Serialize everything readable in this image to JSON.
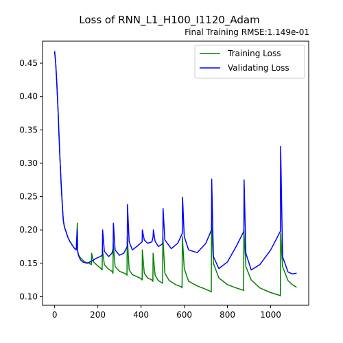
{
  "chart_data": {
    "type": "line",
    "title": "Loss of RNN_L1_H100_I1120_Adam",
    "subtitle": "Final Training RMSE:1.149e-01",
    "xlabel": "",
    "ylabel": "",
    "xlim": [
      -56,
      1176
    ],
    "ylim": [
      0.087,
      0.483
    ],
    "xticks": [
      0,
      200,
      400,
      600,
      800,
      1000
    ],
    "yticks": [
      0.1,
      0.15,
      0.2,
      0.25,
      0.3,
      0.35,
      0.4,
      0.45
    ],
    "xtick_labels": [
      "0",
      "200",
      "400",
      "600",
      "800",
      "1000"
    ],
    "ytick_labels": [
      "0.10",
      "0.15",
      "0.20",
      "0.25",
      "0.30",
      "0.35",
      "0.40",
      "0.45"
    ],
    "grid": false,
    "legend_position": "top-right",
    "series": [
      {
        "name": "Training Loss",
        "color": "#008000",
        "x": [
          0,
          5,
          10,
          15,
          20,
          25,
          30,
          35,
          40,
          45,
          50,
          55,
          60,
          70,
          80,
          90,
          100,
          105,
          106,
          110,
          120,
          130,
          140,
          160,
          170,
          171,
          180,
          200,
          215,
          220,
          221,
          230,
          250,
          265,
          270,
          271,
          280,
          300,
          330,
          335,
          336,
          345,
          360,
          380,
          400,
          405,
          406,
          415,
          430,
          450,
          455,
          456,
          465,
          480,
          495,
          500,
          501,
          510,
          530,
          560,
          585,
          590,
          591,
          600,
          620,
          660,
          700,
          720,
          725,
          726,
          735,
          760,
          800,
          840,
          870,
          875,
          876,
          885,
          910,
          950,
          1000,
          1040,
          1045,
          1046,
          1055,
          1080,
          1100,
          1120
        ],
        "y": [
          0.468,
          0.45,
          0.42,
          0.385,
          0.345,
          0.305,
          0.27,
          0.24,
          0.215,
          0.205,
          0.2,
          0.195,
          0.19,
          0.183,
          0.178,
          0.173,
          0.17,
          0.21,
          0.17,
          0.163,
          0.158,
          0.155,
          0.152,
          0.15,
          0.148,
          0.165,
          0.152,
          0.146,
          0.142,
          0.14,
          0.172,
          0.148,
          0.141,
          0.138,
          0.135,
          0.18,
          0.145,
          0.138,
          0.134,
          0.132,
          0.19,
          0.14,
          0.133,
          0.13,
          0.127,
          0.125,
          0.17,
          0.135,
          0.128,
          0.125,
          0.123,
          0.165,
          0.132,
          0.124,
          0.121,
          0.12,
          0.19,
          0.135,
          0.124,
          0.118,
          0.115,
          0.113,
          0.19,
          0.142,
          0.123,
          0.116,
          0.111,
          0.108,
          0.107,
          0.21,
          0.15,
          0.128,
          0.118,
          0.113,
          0.11,
          0.109,
          0.2,
          0.145,
          0.125,
          0.113,
          0.106,
          0.102,
          0.101,
          0.195,
          0.145,
          0.124,
          0.118,
          0.114
        ]
      },
      {
        "name": "Validating Loss",
        "color": "#0000ff",
        "x": [
          0,
          5,
          10,
          15,
          20,
          25,
          30,
          35,
          40,
          45,
          50,
          55,
          60,
          70,
          80,
          90,
          100,
          105,
          106,
          110,
          120,
          130,
          150,
          170,
          190,
          210,
          221,
          222,
          230,
          250,
          265,
          271,
          272,
          280,
          300,
          320,
          336,
          337,
          345,
          360,
          380,
          405,
          406,
          415,
          430,
          450,
          456,
          457,
          465,
          480,
          495,
          501,
          502,
          510,
          540,
          570,
          591,
          592,
          600,
          620,
          660,
          700,
          726,
          727,
          735,
          760,
          800,
          840,
          876,
          877,
          885,
          910,
          950,
          1000,
          1045,
          1046,
          1055,
          1080,
          1100,
          1120
        ],
        "y": [
          0.468,
          0.45,
          0.42,
          0.385,
          0.345,
          0.305,
          0.27,
          0.24,
          0.215,
          0.205,
          0.2,
          0.195,
          0.19,
          0.183,
          0.178,
          0.173,
          0.17,
          0.2,
          0.17,
          0.162,
          0.155,
          0.152,
          0.15,
          0.153,
          0.157,
          0.16,
          0.162,
          0.2,
          0.168,
          0.16,
          0.165,
          0.172,
          0.21,
          0.17,
          0.162,
          0.165,
          0.175,
          0.238,
          0.182,
          0.17,
          0.175,
          0.182,
          0.2,
          0.185,
          0.18,
          0.182,
          0.19,
          0.2,
          0.183,
          0.175,
          0.178,
          0.18,
          0.232,
          0.185,
          0.172,
          0.18,
          0.195,
          0.249,
          0.19,
          0.17,
          0.166,
          0.18,
          0.2,
          0.276,
          0.16,
          0.142,
          0.152,
          0.175,
          0.198,
          0.275,
          0.165,
          0.14,
          0.148,
          0.17,
          0.198,
          0.325,
          0.16,
          0.137,
          0.134,
          0.135
        ]
      }
    ]
  }
}
